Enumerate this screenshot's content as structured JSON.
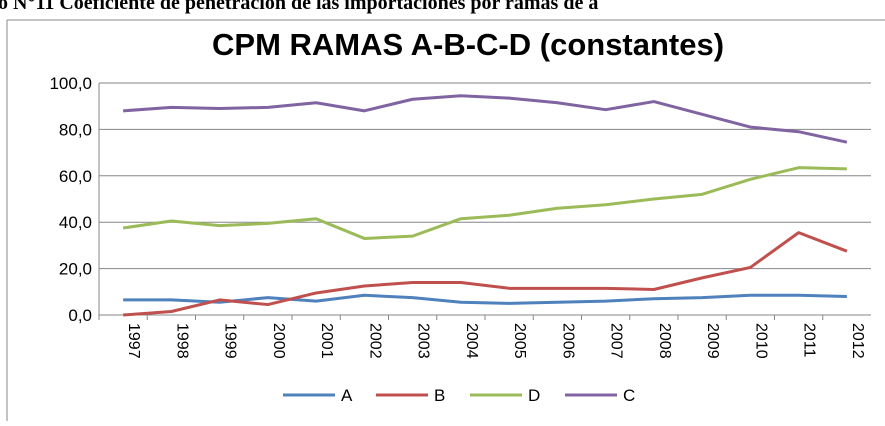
{
  "heading": "o N°11 Coeficiente de penetración de las importaciones por ramas de a",
  "chart_data": {
    "type": "line",
    "title": "CPM RAMAS A-B-C-D (constantes)",
    "categories": [
      "1997",
      "1998",
      "1999",
      "2000",
      "2001",
      "2002",
      "2003",
      "2004",
      "2005",
      "2006",
      "2007",
      "2008",
      "2009",
      "2010",
      "2011",
      "2012"
    ],
    "series": [
      {
        "name": "A",
        "color": "#4f81bd",
        "values": [
          6.5,
          6.5,
          5.5,
          7.5,
          6,
          8.5,
          7.5,
          5.5,
          5,
          5.5,
          6,
          7,
          7.5,
          8.5,
          8.5,
          8
        ]
      },
      {
        "name": "B",
        "color": "#c0504d",
        "values": [
          0,
          1.5,
          6.5,
          4.5,
          9.5,
          12.5,
          14,
          14,
          11.5,
          11.5,
          11.5,
          11,
          16,
          20.5,
          35.5,
          27.5
        ]
      },
      {
        "name": "D",
        "color": "#9bbb59",
        "values": [
          37.5,
          40.5,
          38.5,
          39.5,
          41.5,
          33,
          34,
          41.5,
          43,
          46,
          47.5,
          50,
          52,
          58.5,
          63.5,
          63
        ]
      },
      {
        "name": "C",
        "color": "#8064a2",
        "values": [
          88,
          89.5,
          89,
          89.5,
          91.5,
          88,
          93,
          94.5,
          93.5,
          91.5,
          88.5,
          92,
          86.5,
          81,
          79,
          74.5
        ]
      }
    ],
    "ylim": [
      0,
      100
    ],
    "yticks": [
      {
        "value": 0,
        "label": "0,0"
      },
      {
        "value": 20,
        "label": "20,0"
      },
      {
        "value": 40,
        "label": "40,0"
      },
      {
        "value": 60,
        "label": "60,0"
      },
      {
        "value": 80,
        "label": "80,0"
      },
      {
        "value": 100,
        "label": "100,0"
      }
    ],
    "grid": true,
    "legend": "bottom"
  }
}
